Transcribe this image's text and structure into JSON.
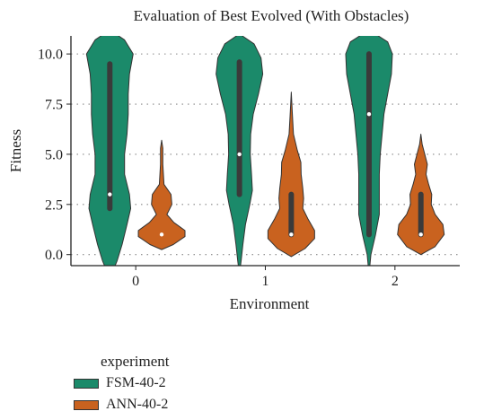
{
  "chart_data": {
    "type": "violin",
    "title": "Evaluation of Best Evolved (With Obstacles)",
    "xlabel": "Environment",
    "ylabel": "Fitness",
    "categories": [
      "0",
      "1",
      "2"
    ],
    "yticks": [
      0.0,
      2.5,
      5.0,
      7.5,
      10.0
    ],
    "ytick_labels": [
      "0.0",
      "2.5",
      "5.0",
      "7.5",
      "10.0"
    ],
    "ylim": [
      -0.55,
      10.9
    ],
    "grid": "horizontal dotted",
    "legend": {
      "title": "experiment",
      "placement": "bottom-left outside",
      "entries": [
        "FSM-40-2",
        "ANN-40-2"
      ]
    },
    "colors": {
      "FSM-40-2": "#1b8a6a",
      "ANN-40-2": "#c9621f",
      "box": "#3a3a3a",
      "median": "#ffffff",
      "outline": "#333333",
      "grid": "#888888",
      "spine": "#222222"
    },
    "series": [
      {
        "name": "FSM-40-2",
        "stats": [
          {
            "median": 3.0,
            "q1": 2.3,
            "q3": 9.5
          },
          {
            "median": 5.0,
            "q1": 3.0,
            "q3": 9.6
          },
          {
            "median": 7.0,
            "q1": 1.0,
            "q3": 10.0
          }
        ],
        "density": [
          [
            [
              -1.2,
              0.0
            ],
            [
              -0.3,
              0.03
            ],
            [
              0.5,
              0.05
            ],
            [
              1.5,
              0.07
            ],
            [
              2.3,
              0.085
            ],
            [
              3.0,
              0.08
            ],
            [
              4.0,
              0.06
            ],
            [
              5.0,
              0.06
            ],
            [
              6.0,
              0.07
            ],
            [
              7.0,
              0.075
            ],
            [
              8.0,
              0.075
            ],
            [
              9.0,
              0.08
            ],
            [
              10.0,
              0.095
            ],
            [
              10.7,
              0.06
            ],
            [
              11.2,
              0.0
            ]
          ],
          [
            [
              -1.0,
              0.0
            ],
            [
              -0.3,
              0.02
            ],
            [
              0.5,
              0.04
            ],
            [
              1.5,
              0.07
            ],
            [
              2.5,
              0.12
            ],
            [
              3.2,
              0.15
            ],
            [
              4.0,
              0.14
            ],
            [
              5.0,
              0.125
            ],
            [
              6.0,
              0.13
            ],
            [
              7.0,
              0.16
            ],
            [
              8.0,
              0.22
            ],
            [
              9.0,
              0.27
            ],
            [
              9.8,
              0.25
            ],
            [
              10.5,
              0.17
            ],
            [
              11.0,
              0.0
            ]
          ],
          [
            [
              -1.0,
              0.0
            ],
            [
              0.0,
              0.02
            ],
            [
              1.0,
              0.07
            ],
            [
              2.0,
              0.11
            ],
            [
              3.0,
              0.11
            ],
            [
              4.0,
              0.11
            ],
            [
              5.0,
              0.12
            ],
            [
              6.0,
              0.14
            ],
            [
              7.0,
              0.16
            ],
            [
              8.0,
              0.2
            ],
            [
              9.0,
              0.24
            ],
            [
              10.0,
              0.25
            ],
            [
              10.6,
              0.2
            ],
            [
              11.2,
              0.0
            ]
          ]
        ]
      },
      {
        "name": "ANN-40-2",
        "stats": [
          {
            "median": 1.0,
            "q1": 1.0,
            "q3": 1.0
          },
          {
            "median": 1.0,
            "q1": 1.0,
            "q3": 3.0
          },
          {
            "median": 1.0,
            "q1": 1.0,
            "q3": 3.0
          }
        ],
        "density": [
          [
            [
              0.25,
              0.0
            ],
            [
              0.5,
              0.4
            ],
            [
              0.9,
              0.8
            ],
            [
              1.2,
              0.8
            ],
            [
              1.6,
              0.42
            ],
            [
              2.0,
              0.18
            ],
            [
              2.5,
              0.35
            ],
            [
              3.0,
              0.32
            ],
            [
              3.5,
              0.08
            ],
            [
              4.5,
              0.04
            ],
            [
              5.3,
              0.04
            ],
            [
              5.7,
              0.0
            ]
          ],
          [
            [
              -0.1,
              0.0
            ],
            [
              0.3,
              0.5
            ],
            [
              0.8,
              0.85
            ],
            [
              1.2,
              0.85
            ],
            [
              1.8,
              0.6
            ],
            [
              2.3,
              0.42
            ],
            [
              2.8,
              0.45
            ],
            [
              3.3,
              0.42
            ],
            [
              4.0,
              0.36
            ],
            [
              4.6,
              0.35
            ],
            [
              5.2,
              0.22
            ],
            [
              6.0,
              0.08
            ],
            [
              7.0,
              0.04
            ],
            [
              8.1,
              0.0
            ]
          ],
          [
            [
              0.0,
              0.0
            ],
            [
              0.4,
              0.55
            ],
            [
              1.0,
              0.9
            ],
            [
              1.5,
              0.85
            ],
            [
              2.0,
              0.55
            ],
            [
              2.5,
              0.4
            ],
            [
              3.0,
              0.42
            ],
            [
              3.5,
              0.3
            ],
            [
              4.0,
              0.2
            ],
            [
              4.5,
              0.25
            ],
            [
              5.0,
              0.15
            ],
            [
              5.5,
              0.05
            ],
            [
              6.0,
              0.0
            ]
          ]
        ]
      }
    ]
  }
}
